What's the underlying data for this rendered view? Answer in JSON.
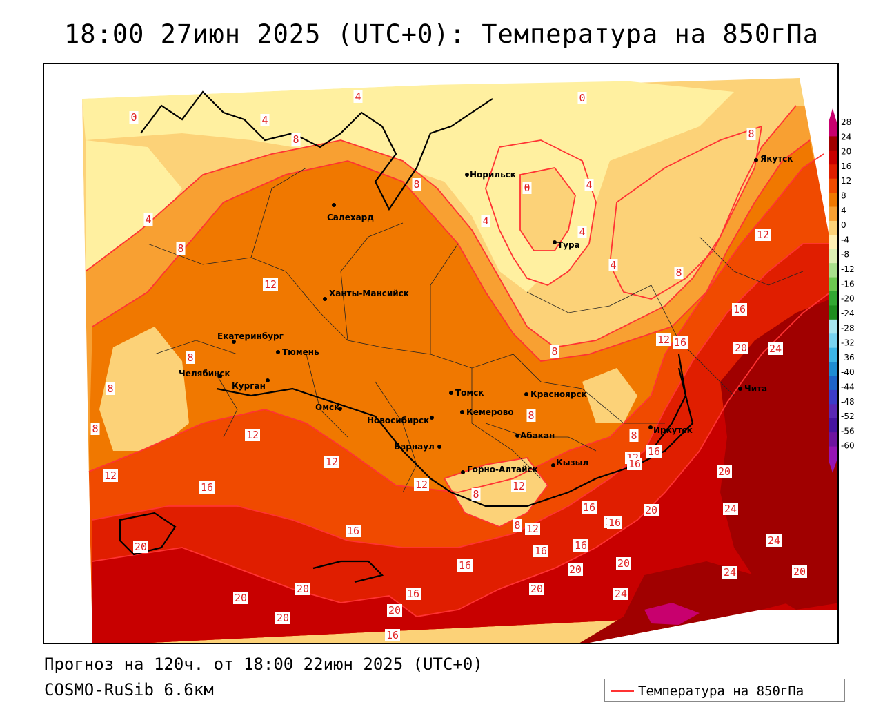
{
  "title": "18:00 27июн 2025 (UTC+0): Температура на 850гПа",
  "footer": {
    "forecast": "Прогноз на 120ч. от 18:00 22июн 2025 (UTC+0)",
    "model": "COSMO-RuSib 6.6км"
  },
  "legend": {
    "label": "Температура на 850гПа",
    "line_color": "#ff3333"
  },
  "colorbar": {
    "ticks": [
      "28",
      "24",
      "20",
      "16",
      "12",
      "8",
      "4",
      "0",
      "-4",
      "-8",
      "-12",
      "-16",
      "-20",
      "-24",
      "-28",
      "-32",
      "-36",
      "-40",
      "-44",
      "-48",
      "-52",
      "-56",
      "-60"
    ],
    "colors": [
      "#c8006e",
      "#a00000",
      "#c80000",
      "#e01e00",
      "#f04a00",
      "#f07800",
      "#f8a032",
      "#fcd278",
      "#fff0b4",
      "#dcf0b4",
      "#a8e08c",
      "#6cc850",
      "#32a832",
      "#1e8c1e",
      "#a8e6f0",
      "#78d2f0",
      "#3cb4e6",
      "#1e8cd2",
      "#1e64c8",
      "#3c3cc8",
      "#5a28b4",
      "#4614a0",
      "#6e14a0",
      "#9614b4"
    ]
  },
  "cities": [
    {
      "name": "Салехард"
    },
    {
      "name": "Норильск"
    },
    {
      "name": "Якутск"
    },
    {
      "name": "Тура"
    },
    {
      "name": "Ханты-Мансийск"
    },
    {
      "name": "Екатеринбург"
    },
    {
      "name": "Тюмень"
    },
    {
      "name": "Челябинск"
    },
    {
      "name": "Курган"
    },
    {
      "name": "Омск"
    },
    {
      "name": "Новосибирск"
    },
    {
      "name": "Томск"
    },
    {
      "name": "Красноярск"
    },
    {
      "name": "Кемерово"
    },
    {
      "name": "Барнаул"
    },
    {
      "name": "Абакан"
    },
    {
      "name": "Иркутск"
    },
    {
      "name": "Чита"
    },
    {
      "name": "Горно-Алтайск"
    },
    {
      "name": "Кызыл"
    }
  ],
  "contour_labels": [
    "0",
    "4",
    "8",
    "12",
    "16",
    "20",
    "24"
  ]
}
